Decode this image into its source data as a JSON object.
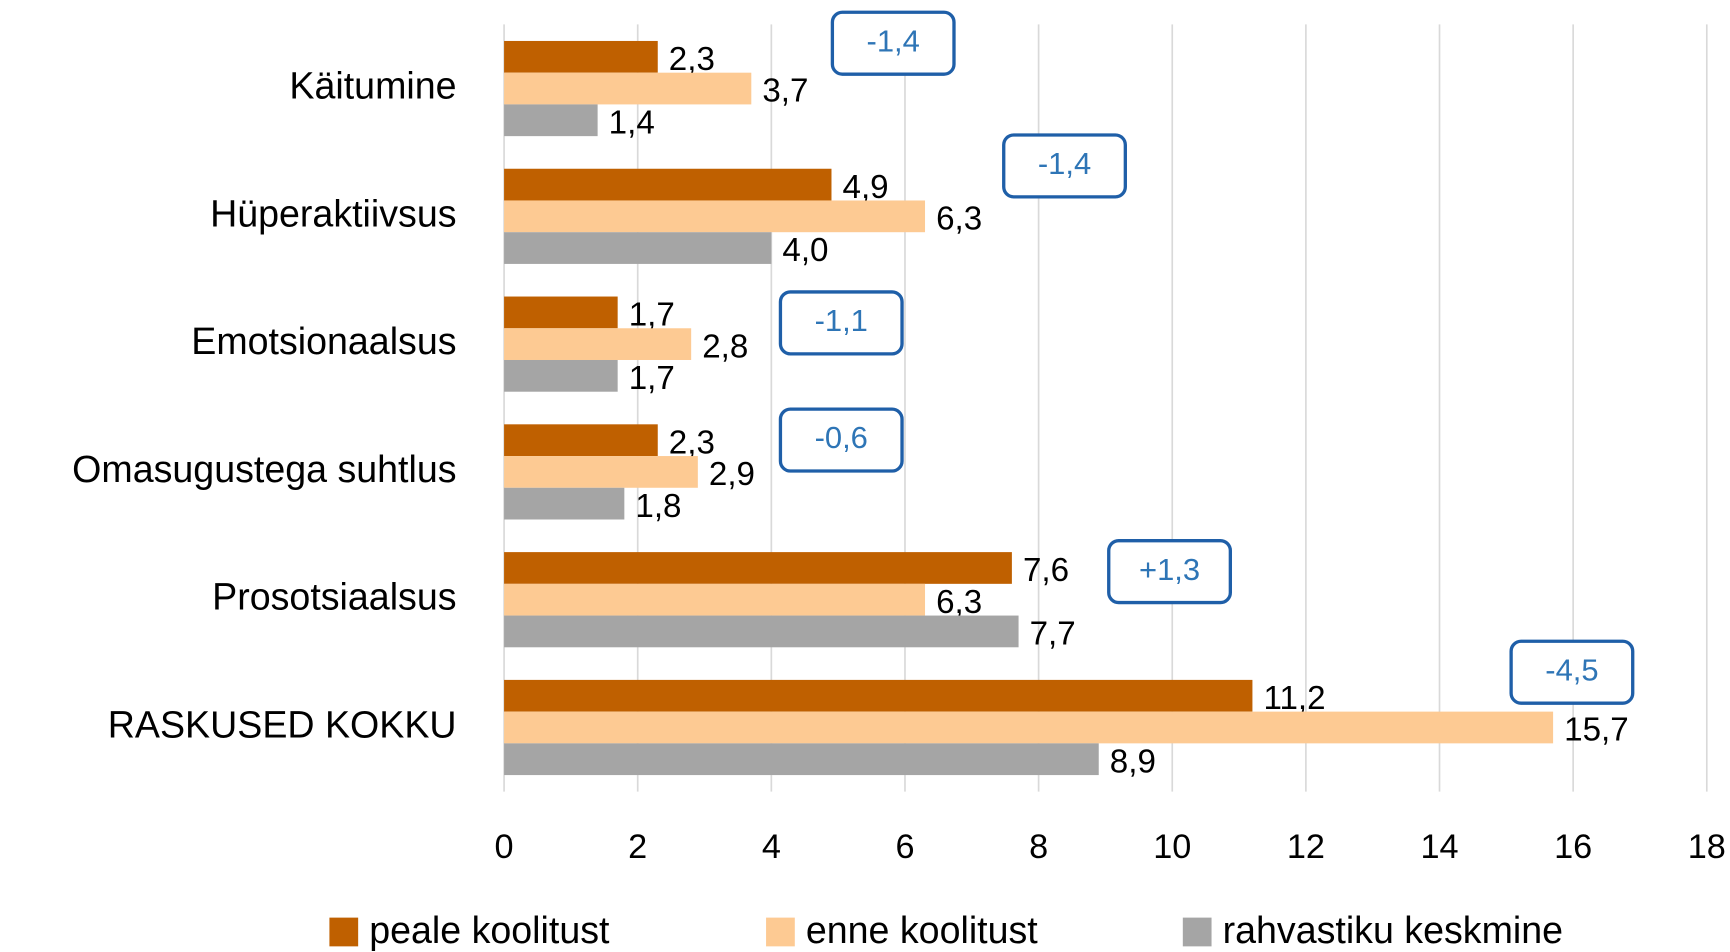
{
  "chart_data": {
    "type": "bar",
    "orientation": "horizontal",
    "categories": [
      "Käitumine",
      "Hüperaktiivsus",
      "Emotsionaalsus",
      "Omasugustega suhtlus",
      "Prosotsiaalsus",
      "RASKUSED KOKKU"
    ],
    "series": [
      {
        "name": "peale koolitust",
        "color": "#bf6000",
        "values": [
          2.3,
          4.9,
          1.7,
          2.3,
          7.6,
          11.2
        ],
        "value_labels": [
          "2,3",
          "4,9",
          "1,7",
          "2,3",
          "7,6",
          "11,2"
        ]
      },
      {
        "name": "enne koolitust",
        "color": "#fdca93",
        "values": [
          3.7,
          6.3,
          2.8,
          2.9,
          6.3,
          15.7
        ],
        "value_labels": [
          "3,7",
          "6,3",
          "2,8",
          "2,9",
          "6,3",
          "15,7"
        ]
      },
      {
        "name": "rahvastiku keskmine",
        "color": "#a5a5a5",
        "values": [
          1.4,
          4.0,
          1.7,
          1.8,
          7.7,
          8.9
        ],
        "value_labels": [
          "1,4",
          "4,0",
          "1,7",
          "1,8",
          "7,7",
          "8,9"
        ]
      }
    ],
    "annotations": [
      "-1,4",
      "-1,4",
      "-1,1",
      "-0,6",
      "+1,3",
      "-4,5"
    ],
    "xlim": [
      0,
      18
    ],
    "xticks": [
      0,
      2,
      4,
      6,
      8,
      10,
      12,
      14,
      16,
      18
    ],
    "grid": true,
    "legend": "bottom"
  }
}
